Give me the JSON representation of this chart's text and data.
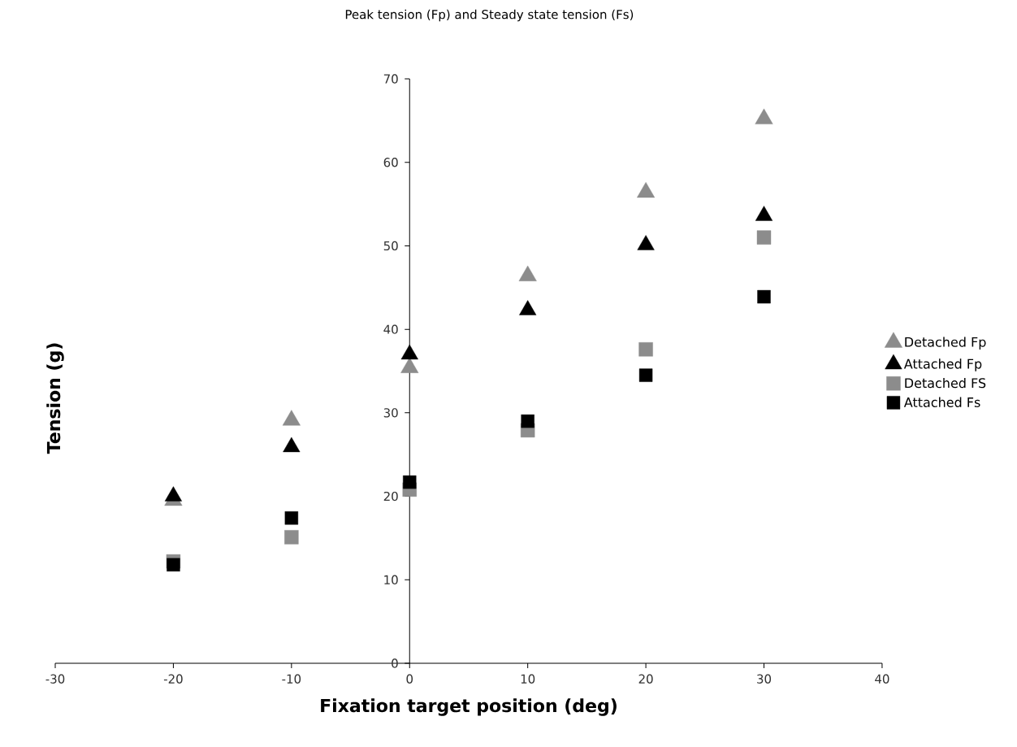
{
  "chart_data": {
    "type": "scatter",
    "title": "Peak tension (Fp) and Steady state tension (Fs)",
    "xlabel": "Fixation target position (deg)",
    "ylabel": "Tension (g)",
    "x": [
      -20,
      -10,
      0,
      10,
      20,
      30
    ],
    "series": [
      {
        "name": "Detached Fp",
        "color": "#8c8c8c",
        "marker": "triangle",
        "values": [
          19.5,
          29.1,
          35.4,
          46.4,
          56.4,
          65.2
        ]
      },
      {
        "name": "Attached Fp",
        "color": "#000000",
        "marker": "triangle",
        "values": [
          20.0,
          25.9,
          37.0,
          42.3,
          50.1,
          53.6
        ]
      },
      {
        "name": "Detached FS",
        "color": "#8c8c8c",
        "marker": "square",
        "values": [
          12.2,
          15.1,
          20.8,
          27.9,
          37.6,
          51.0
        ]
      },
      {
        "name": "Attached Fs",
        "color": "#000000",
        "marker": "square",
        "values": [
          11.8,
          17.4,
          21.7,
          29.0,
          34.5,
          43.9
        ]
      }
    ],
    "xlim": [
      -30,
      40
    ],
    "ylim": [
      0,
      70
    ],
    "xticks": [
      -30,
      -20,
      -10,
      0,
      10,
      20,
      30,
      40
    ],
    "yticks": [
      0,
      10,
      20,
      30,
      40,
      50,
      60,
      70
    ],
    "grid": false,
    "legend": "right"
  }
}
